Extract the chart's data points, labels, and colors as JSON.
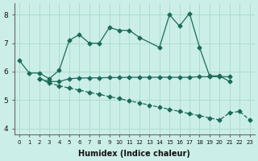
{
  "background_color": "#cceee8",
  "grid_color": "#aaddcc",
  "line_color": "#1a6b5a",
  "xlabel": "Humidex (Indice chaleur)",
  "ylim": [
    3.8,
    8.4
  ],
  "xlim": [
    -0.5,
    23.5
  ],
  "yticks": [
    4,
    5,
    6,
    7,
    8
  ],
  "xticks": [
    0,
    1,
    2,
    3,
    4,
    5,
    6,
    7,
    8,
    9,
    10,
    11,
    12,
    13,
    14,
    15,
    16,
    17,
    18,
    19,
    20,
    21,
    22,
    23
  ],
  "s1_x": [
    0,
    1,
    2,
    3,
    4,
    5,
    6,
    7,
    8,
    9,
    10,
    11,
    12,
    14,
    15,
    16,
    17,
    18,
    19,
    20,
    21
  ],
  "s1_y": [
    6.4,
    5.95,
    5.95,
    5.75,
    6.05,
    7.1,
    7.3,
    7.0,
    7.0,
    7.55,
    7.45,
    7.45,
    7.2,
    6.85,
    8.0,
    7.6,
    8.05,
    6.85,
    5.85,
    5.85,
    5.65
  ],
  "s2_x": [
    2,
    3,
    4,
    5,
    6,
    7,
    8,
    9,
    10,
    11,
    12,
    13,
    14,
    15,
    16,
    17,
    18,
    19,
    20,
    21
  ],
  "s2_y": [
    5.75,
    5.65,
    5.65,
    5.75,
    5.77,
    5.78,
    5.78,
    5.79,
    5.79,
    5.8,
    5.8,
    5.8,
    5.8,
    5.8,
    5.8,
    5.8,
    5.82,
    5.82,
    5.82,
    5.82
  ],
  "s3_x": [
    2,
    3,
    4,
    5,
    6,
    7,
    8,
    9,
    10,
    11,
    12,
    13,
    14,
    15,
    16,
    17,
    18,
    19,
    20,
    21,
    22,
    23
  ],
  "s3_y": [
    5.75,
    5.6,
    5.5,
    5.42,
    5.35,
    5.27,
    5.2,
    5.12,
    5.05,
    4.97,
    4.9,
    4.82,
    4.75,
    4.67,
    4.6,
    4.52,
    4.45,
    4.37,
    4.3,
    4.55,
    4.6,
    4.3
  ]
}
